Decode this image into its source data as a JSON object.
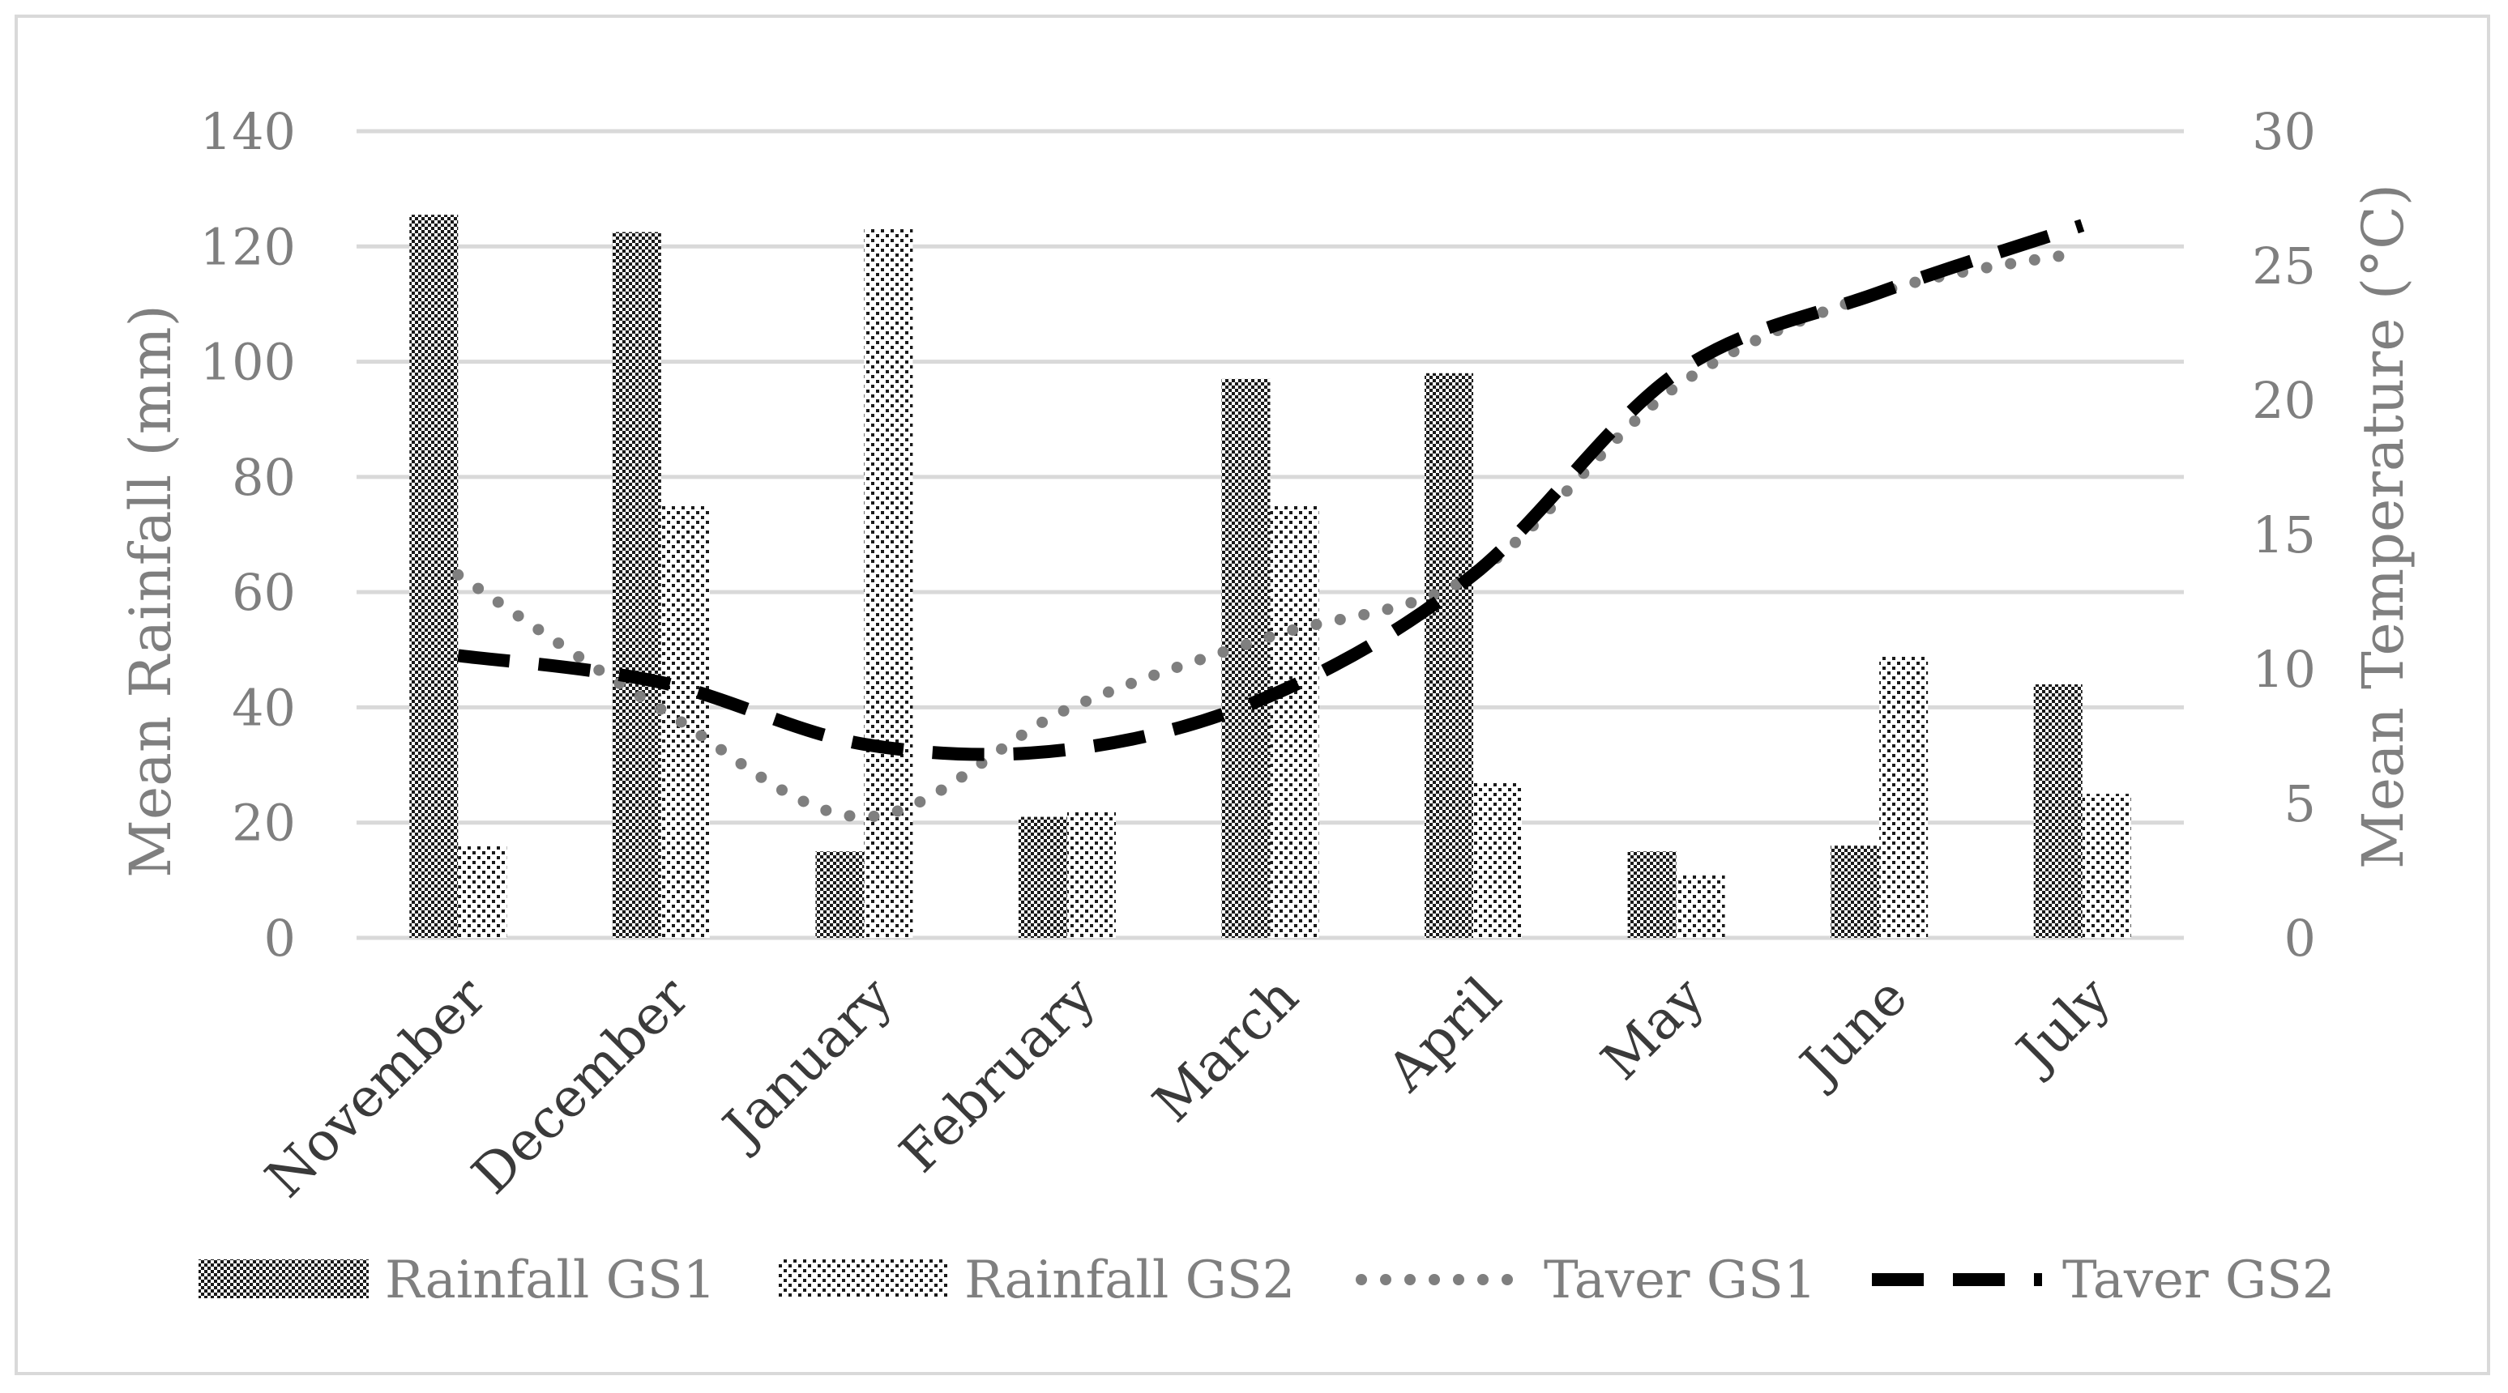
{
  "chart_data": {
    "type": "bar+line",
    "categories": [
      "November",
      "December",
      "January",
      "February",
      "March",
      "April",
      "May",
      "June",
      "July"
    ],
    "series": [
      {
        "name": "Rainfall GS1",
        "kind": "bar",
        "axis": "left",
        "values": [
          125.5,
          122.5,
          15,
          21,
          97,
          98,
          15,
          16,
          44
        ]
      },
      {
        "name": "Rainfall GS2",
        "kind": "bar",
        "axis": "left",
        "values": [
          16,
          75,
          123,
          22,
          75,
          27,
          11,
          49,
          25
        ]
      },
      {
        "name": "Taver GS1",
        "kind": "line",
        "axis": "right",
        "style": "dotted",
        "values": [
          13.5,
          8.5,
          4.5,
          8.5,
          11.2,
          13.5,
          20.5,
          24,
          25.5
        ]
      },
      {
        "name": "Taver GS2",
        "kind": "line",
        "axis": "right",
        "style": "dashed",
        "values": [
          10.5,
          9.5,
          7.2,
          7,
          9,
          13.5,
          21,
          24,
          26.5
        ]
      }
    ],
    "ylabel": "Mean Rainfall (mm)",
    "y2label": "Mean Temperature (°C)",
    "ylim": [
      0,
      140
    ],
    "y2lim": [
      0,
      30
    ],
    "yticks": [
      0,
      20,
      40,
      60,
      80,
      100,
      120,
      140
    ],
    "y2ticks": [
      0,
      5,
      10,
      15,
      20,
      25,
      30
    ],
    "grid": true,
    "legend": "bottom"
  },
  "colors": {
    "grid": "#d9d9d9",
    "tick_text": "#7f7f7f",
    "category_text": "#3a3a3a",
    "bar_gs1_dark": "#1a1a1a",
    "bar_gs2_dot": "#1a1a1a",
    "line_gs1": "#7f7f7f",
    "line_gs2": "#000000"
  }
}
